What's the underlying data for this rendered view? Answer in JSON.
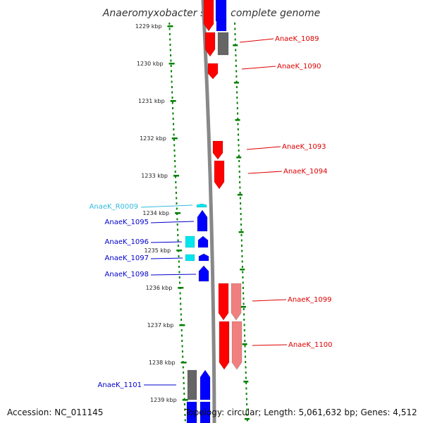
{
  "title": "Anaeromyxobacter sp. K, complete genome",
  "accession": "Accession: NC_011145",
  "summary": "Topology: circular; Length: 5,061,632 bp; Genes: 4,512",
  "ticks": [
    "1229 kbp",
    "1230 kbp",
    "1231 kbp",
    "1232 kbp",
    "1233 kbp",
    "1234 kbp",
    "1235 kbp",
    "1236 kbp",
    "1237 kbp",
    "1238 kbp",
    "1239 kbp"
  ],
  "colors": {
    "forward_cds": "#ff0000",
    "forward_cds_light": "#f08080",
    "reverse_cds": "#0000ff",
    "rna": "#00e5ee",
    "other": "#666666",
    "backbone": "#888888",
    "tick": "#008000",
    "label_forward": "#dd0000",
    "label_reverse": "#0000cc",
    "label_rna": "#33bbdd"
  },
  "labels": [
    {
      "name": "AnaeK_1089",
      "strand": "forward"
    },
    {
      "name": "AnaeK_1090",
      "strand": "forward"
    },
    {
      "name": "AnaeK_1093",
      "strand": "forward"
    },
    {
      "name": "AnaeK_1094",
      "strand": "forward"
    },
    {
      "name": "AnaeK_R0009",
      "strand": "rna"
    },
    {
      "name": "AnaeK_1095",
      "strand": "reverse"
    },
    {
      "name": "AnaeK_1096",
      "strand": "reverse"
    },
    {
      "name": "AnaeK_1097",
      "strand": "reverse"
    },
    {
      "name": "AnaeK_1098",
      "strand": "reverse"
    },
    {
      "name": "AnaeK_1099",
      "strand": "forward"
    },
    {
      "name": "AnaeK_1100",
      "strand": "forward"
    },
    {
      "name": "AnaeK_1101",
      "strand": "reverse"
    }
  ]
}
